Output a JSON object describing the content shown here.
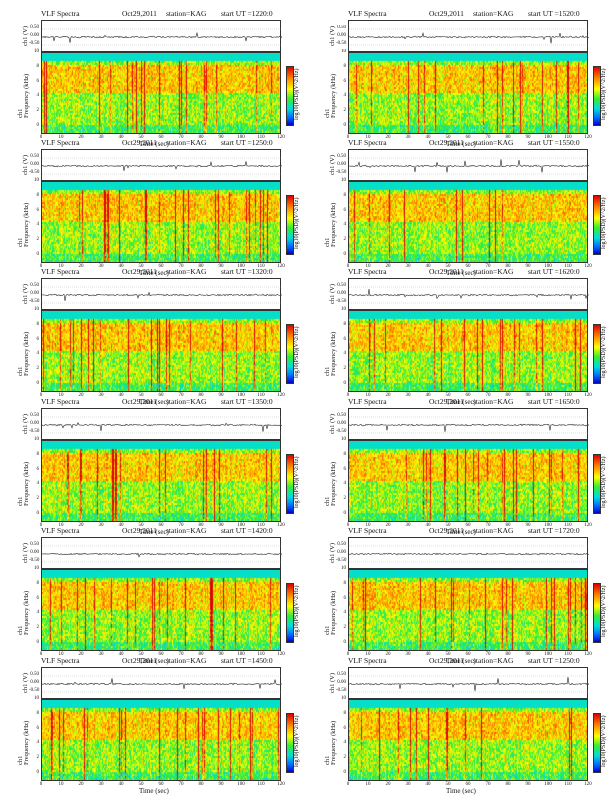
{
  "chart_data": [
    {
      "type": "heatmap",
      "title": "VLF Spectra",
      "date": "Oct29,2011",
      "station": "station=KAG",
      "start": "start UT =1220:0",
      "ts_ylabel": "ch1 (V)",
      "ts_ticks": [
        "0.50",
        "0.00",
        "-0.50"
      ],
      "ylabel": "ch1\nFrequency (kHz)",
      "y_ticks": [
        "0",
        "2",
        "4",
        "6",
        "8",
        "10"
      ],
      "xlabel": "Time (sec)",
      "x_ticks": [
        "0",
        "10",
        "20",
        "30",
        "40",
        "50",
        "60",
        "70",
        "80",
        "90",
        "100",
        "110",
        "120"
      ],
      "xlim": [
        0,
        120
      ],
      "ylim": [
        0,
        10
      ],
      "colorbar_label": "log10(PSD)(V^2/Hz)"
    },
    {
      "type": "heatmap",
      "title": "VLF Spectra",
      "date": "Oct29,2011",
      "station": "station=KAG",
      "start": "start UT =1250:0",
      "ts_ylabel": "ch1 (V)",
      "ts_ticks": [
        "0.50",
        "0.00",
        "-0.50"
      ],
      "ylabel": "ch1\nFrequency (kHz)",
      "y_ticks": [
        "0",
        "2",
        "4",
        "6",
        "8",
        "10"
      ],
      "xlabel": "Time (sec)",
      "x_ticks": [
        "0",
        "10",
        "20",
        "30",
        "40",
        "50",
        "60",
        "70",
        "80",
        "90",
        "100",
        "110",
        "120"
      ],
      "xlim": [
        0,
        120
      ],
      "ylim": [
        0,
        10
      ],
      "colorbar_label": "log10(PSD)(V^2/Hz)"
    },
    {
      "type": "heatmap",
      "title": "VLF Spectra",
      "date": "Oct29,2011",
      "station": "station=KAG",
      "start": "start UT =1320:0",
      "ts_ylabel": "ch1 (V)",
      "ts_ticks": [
        "0.50",
        "0.00",
        "-0.50"
      ],
      "ylabel": "ch1\nFrequency (kHz)",
      "y_ticks": [
        "0",
        "2",
        "4",
        "6",
        "8",
        "10"
      ],
      "xlabel": "Time (sec)",
      "x_ticks": [
        "0",
        "10",
        "20",
        "30",
        "40",
        "50",
        "60",
        "70",
        "80",
        "90",
        "100",
        "110",
        "120"
      ],
      "xlim": [
        0,
        120
      ],
      "ylim": [
        0,
        10
      ],
      "colorbar_label": "log10(PSD)(V^2/Hz)"
    },
    {
      "type": "heatmap",
      "title": "VLF Spectra",
      "date": "Oct29,2011",
      "station": "station=KAG",
      "start": "start UT =1350:0",
      "ts_ylabel": "ch1 (V)",
      "ts_ticks": [
        "0.50",
        "0.00",
        "-0.50"
      ],
      "ylabel": "ch1\nFrequency (kHz)",
      "y_ticks": [
        "0",
        "2",
        "4",
        "6",
        "8",
        "10"
      ],
      "xlabel": "Time (sec)",
      "x_ticks": [
        "0",
        "10",
        "20",
        "30",
        "40",
        "50",
        "60",
        "70",
        "80",
        "90",
        "100",
        "110",
        "120"
      ],
      "xlim": [
        0,
        120
      ],
      "ylim": [
        0,
        10
      ],
      "colorbar_label": "log10(PSD)(V^2/Hz)"
    },
    {
      "type": "heatmap",
      "title": "VLF Spectra",
      "date": "Oct29,2011",
      "station": "station=KAG",
      "start": "start UT =1420:0",
      "ts_ylabel": "ch1 (V)",
      "ts_ticks": [
        "0.50",
        "0.00",
        "-0.50"
      ],
      "ylabel": "ch1\nFrequency (kHz)",
      "y_ticks": [
        "0",
        "2",
        "4",
        "6",
        "8",
        "10"
      ],
      "xlabel": "Time (sec)",
      "x_ticks": [
        "0",
        "10",
        "20",
        "30",
        "40",
        "50",
        "60",
        "70",
        "80",
        "90",
        "100",
        "110",
        "120"
      ],
      "xlim": [
        0,
        120
      ],
      "ylim": [
        0,
        10
      ],
      "colorbar_label": "log10(PSD)(V^2/Hz)"
    },
    {
      "type": "heatmap",
      "title": "VLF Spectra",
      "date": "Oct29,2011",
      "station": "station=KAG",
      "start": "start UT =1450:0",
      "ts_ylabel": "ch1 (V)",
      "ts_ticks": [
        "0.50",
        "0.00",
        "-0.50"
      ],
      "ylabel": "ch1\nFrequency (kHz)",
      "y_ticks": [
        "0",
        "2",
        "4",
        "6",
        "8",
        "10"
      ],
      "xlabel": "Time (sec)",
      "x_ticks": [
        "0",
        "10",
        "20",
        "30",
        "40",
        "50",
        "60",
        "70",
        "80",
        "90",
        "100",
        "110",
        "120"
      ],
      "xlim": [
        0,
        120
      ],
      "ylim": [
        0,
        10
      ],
      "colorbar_label": "log10(PSD)(V^2/Hz)"
    },
    {
      "type": "heatmap",
      "title": "VLF Spectra",
      "date": "Oct29,2011",
      "station": "station=KAG",
      "start": "start UT =1520:0",
      "ts_ylabel": "ch1 (V)",
      "ts_ticks": [
        "0.50",
        "0.00",
        "-0.50"
      ],
      "ylabel": "ch1\nFrequency (kHz)",
      "y_ticks": [
        "0",
        "2",
        "4",
        "6",
        "8",
        "10"
      ],
      "xlabel": "Time (sec)",
      "x_ticks": [
        "0",
        "10",
        "20",
        "30",
        "40",
        "50",
        "60",
        "70",
        "80",
        "90",
        "100",
        "110",
        "120"
      ],
      "xlim": [
        0,
        120
      ],
      "ylim": [
        0,
        10
      ],
      "colorbar_label": "log10(PSD)(V^2/Hz)"
    },
    {
      "type": "heatmap",
      "title": "VLF Spectra",
      "date": "Oct29,2011",
      "station": "station=KAG",
      "start": "start UT =1550:0",
      "ts_ylabel": "ch1 (V)",
      "ts_ticks": [
        "0.50",
        "0.00",
        "-0.50"
      ],
      "ylabel": "ch1\nFrequency (kHz)",
      "y_ticks": [
        "0",
        "2",
        "4",
        "6",
        "8",
        "10"
      ],
      "xlabel": "Time (sec)",
      "x_ticks": [
        "0",
        "10",
        "20",
        "30",
        "40",
        "50",
        "60",
        "70",
        "80",
        "90",
        "100",
        "110",
        "120"
      ],
      "xlim": [
        0,
        120
      ],
      "ylim": [
        0,
        10
      ],
      "colorbar_label": "log10(PSD)(V^2/Hz)"
    },
    {
      "type": "heatmap",
      "title": "VLF Spectra",
      "date": "Oct29,2011",
      "station": "station=KAG",
      "start": "start UT =1620:0",
      "ts_ylabel": "ch1 (V)",
      "ts_ticks": [
        "0.50",
        "0.00",
        "-0.50"
      ],
      "ylabel": "ch1\nFrequency (kHz)",
      "y_ticks": [
        "0",
        "2",
        "4",
        "6",
        "8",
        "10"
      ],
      "xlabel": "Time (sec)",
      "x_ticks": [
        "0",
        "10",
        "20",
        "30",
        "40",
        "50",
        "60",
        "70",
        "80",
        "90",
        "100",
        "110",
        "120"
      ],
      "xlim": [
        0,
        120
      ],
      "ylim": [
        0,
        10
      ],
      "colorbar_label": "log10(PSD)(V^2/Hz)"
    },
    {
      "type": "heatmap",
      "title": "VLF Spectra",
      "date": "Oct29,2011",
      "station": "station=KAG",
      "start": "start UT =1650:0",
      "ts_ylabel": "ch1 (V)",
      "ts_ticks": [
        "0.50",
        "0.00",
        "-0.50"
      ],
      "ylabel": "ch1\nFrequency (kHz)",
      "y_ticks": [
        "0",
        "2",
        "4",
        "6",
        "8",
        "10"
      ],
      "xlabel": "Time (sec)",
      "x_ticks": [
        "0",
        "10",
        "20",
        "30",
        "40",
        "50",
        "60",
        "70",
        "80",
        "90",
        "100",
        "110",
        "120"
      ],
      "xlim": [
        0,
        120
      ],
      "ylim": [
        0,
        10
      ],
      "colorbar_label": "log10(PSD)(V^2/Hz)"
    },
    {
      "type": "heatmap",
      "title": "VLF Spectra",
      "date": "Oct29,2011",
      "station": "station=KAG",
      "start": "start UT =1720:0",
      "ts_ylabel": "ch1 (V)",
      "ts_ticks": [
        "0.50",
        "0.00",
        "-0.50"
      ],
      "ylabel": "ch1\nFrequency (kHz)",
      "y_ticks": [
        "0",
        "2",
        "4",
        "6",
        "8",
        "10"
      ],
      "xlabel": "Time (sec)",
      "x_ticks": [
        "0",
        "10",
        "20",
        "30",
        "40",
        "50",
        "60",
        "70",
        "80",
        "90",
        "100",
        "110",
        "120"
      ],
      "xlim": [
        0,
        120
      ],
      "ylim": [
        0,
        10
      ],
      "colorbar_label": "log10(PSD)(V^2/Hz)"
    },
    {
      "type": "heatmap",
      "title": "VLF Spectra",
      "date": "Oct29,2011",
      "station": "station=KAG",
      "start": "start UT =1250:0",
      "ts_ylabel": "ch1 (V)",
      "ts_ticks": [
        "0.50",
        "0.00",
        "-0.50"
      ],
      "ylabel": "ch1\nFrequency (kHz)",
      "y_ticks": [
        "0",
        "2",
        "4",
        "6",
        "8",
        "10"
      ],
      "xlabel": "Time (sec)",
      "x_ticks": [
        "0",
        "10",
        "20",
        "30",
        "40",
        "50",
        "60",
        "70",
        "80",
        "90",
        "100",
        "110",
        "120"
      ],
      "xlim": [
        0,
        120
      ],
      "ylim": [
        0,
        10
      ],
      "colorbar_label": "log10(PSD)(V^2/Hz)"
    }
  ]
}
